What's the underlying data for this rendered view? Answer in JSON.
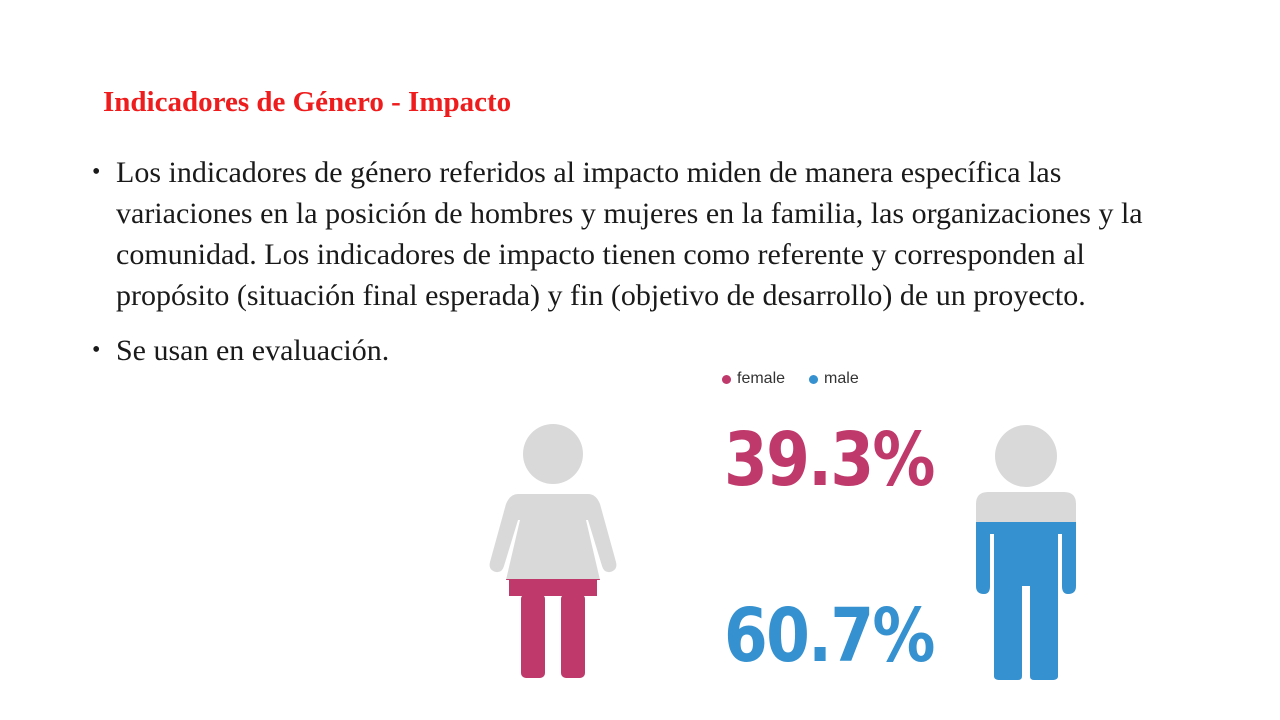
{
  "slide": {
    "title": "Indicadores de Género - Impacto",
    "title_color": "#ee1c1c",
    "bullets": [
      "Los indicadores de género referidos al impacto miden de manera específica las variaciones en la posición de hombres y mujeres en la familia, las organizaciones y la comunidad. Los indicadores de impacto tienen como referente y corresponden al propósito (situación final esperada) y fin (objetivo de desarrollo) de un proyecto.",
      "Se usan en evaluación."
    ]
  },
  "infographic": {
    "legend": [
      {
        "label": "female",
        "color": "#c0396b"
      },
      {
        "label": "male",
        "color": "#3591cf"
      }
    ],
    "female_percent_label": "39.3%",
    "male_percent_label": "60.7%",
    "female_value": 39.3,
    "male_value": 60.7,
    "base_color": "#d9d9d9"
  }
}
